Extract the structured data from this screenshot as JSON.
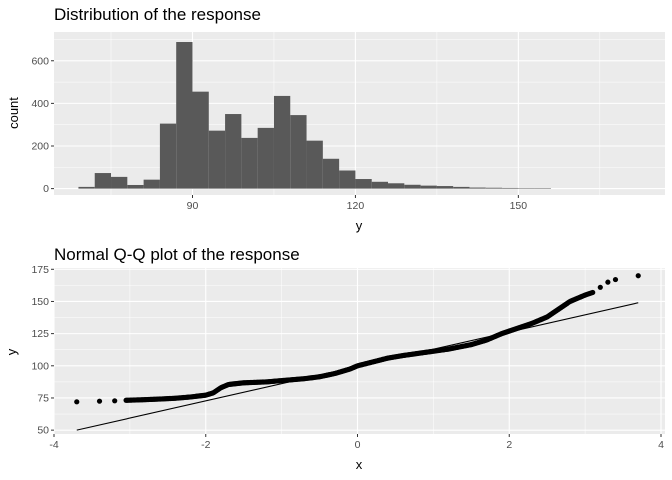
{
  "chart_data": [
    {
      "type": "histogram",
      "title": "Distribution of the response",
      "xlabel": "y",
      "ylabel": "count",
      "xlim": [
        64.5,
        177
      ],
      "ylim": [
        -30,
        735
      ],
      "xticks": [
        90,
        120,
        150
      ],
      "yticks": [
        0,
        200,
        400,
        600
      ],
      "bin_width": 3,
      "bins": [
        {
          "x0": 69,
          "x1": 72,
          "count": 8
        },
        {
          "x0": 72,
          "x1": 75,
          "count": 73
        },
        {
          "x0": 75,
          "x1": 78,
          "count": 55
        },
        {
          "x0": 78,
          "x1": 81,
          "count": 17
        },
        {
          "x0": 81,
          "x1": 84,
          "count": 42
        },
        {
          "x0": 84,
          "x1": 87,
          "count": 305
        },
        {
          "x0": 87,
          "x1": 90,
          "count": 688
        },
        {
          "x0": 90,
          "x1": 93,
          "count": 455
        },
        {
          "x0": 93,
          "x1": 96,
          "count": 272
        },
        {
          "x0": 96,
          "x1": 99,
          "count": 350
        },
        {
          "x0": 99,
          "x1": 102,
          "count": 238
        },
        {
          "x0": 102,
          "x1": 105,
          "count": 285
        },
        {
          "x0": 105,
          "x1": 108,
          "count": 435
        },
        {
          "x0": 108,
          "x1": 111,
          "count": 345
        },
        {
          "x0": 111,
          "x1": 114,
          "count": 225
        },
        {
          "x0": 114,
          "x1": 117,
          "count": 140
        },
        {
          "x0": 117,
          "x1": 120,
          "count": 85
        },
        {
          "x0": 120,
          "x1": 123,
          "count": 45
        },
        {
          "x0": 123,
          "x1": 126,
          "count": 32
        },
        {
          "x0": 126,
          "x1": 129,
          "count": 25
        },
        {
          "x0": 129,
          "x1": 132,
          "count": 18
        },
        {
          "x0": 132,
          "x1": 135,
          "count": 14
        },
        {
          "x0": 135,
          "x1": 138,
          "count": 12
        },
        {
          "x0": 138,
          "x1": 141,
          "count": 8
        },
        {
          "x0": 141,
          "x1": 144,
          "count": 5
        },
        {
          "x0": 144,
          "x1": 147,
          "count": 4
        },
        {
          "x0": 147,
          "x1": 150,
          "count": 3
        },
        {
          "x0": 150,
          "x1": 153,
          "count": 2
        },
        {
          "x0": 153,
          "x1": 156,
          "count": 1
        }
      ],
      "bar_color": "#595959",
      "panel_color": "#ebebeb"
    },
    {
      "type": "scatter",
      "title": "Normal Q-Q plot of the response",
      "xlabel": "x",
      "ylabel": "y",
      "xlim": [
        -4,
        4
      ],
      "ylim": [
        47,
        176
      ],
      "xticks": [
        -4,
        -2,
        0,
        2,
        4
      ],
      "yticks": [
        50,
        75,
        100,
        125,
        150,
        175
      ],
      "quantile_curve": [
        {
          "x": -3.7,
          "y": 72
        },
        {
          "x": -3.4,
          "y": 72.5
        },
        {
          "x": -3.2,
          "y": 73
        },
        {
          "x": -3.0,
          "y": 73.3
        },
        {
          "x": -2.8,
          "y": 73.7
        },
        {
          "x": -2.6,
          "y": 74.2
        },
        {
          "x": -2.4,
          "y": 74.8
        },
        {
          "x": -2.2,
          "y": 75.8
        },
        {
          "x": -2.0,
          "y": 77.2
        },
        {
          "x": -1.9,
          "y": 79
        },
        {
          "x": -1.8,
          "y": 83
        },
        {
          "x": -1.7,
          "y": 85.5
        },
        {
          "x": -1.5,
          "y": 86.8
        },
        {
          "x": -1.2,
          "y": 87.5
        },
        {
          "x": -1.0,
          "y": 88.5
        },
        {
          "x": -0.7,
          "y": 90
        },
        {
          "x": -0.5,
          "y": 91.5
        },
        {
          "x": -0.3,
          "y": 94
        },
        {
          "x": -0.1,
          "y": 97.5
        },
        {
          "x": 0.0,
          "y": 100
        },
        {
          "x": 0.2,
          "y": 103
        },
        {
          "x": 0.4,
          "y": 106
        },
        {
          "x": 0.6,
          "y": 108
        },
        {
          "x": 0.9,
          "y": 110.5
        },
        {
          "x": 1.2,
          "y": 113
        },
        {
          "x": 1.5,
          "y": 116.5
        },
        {
          "x": 1.7,
          "y": 120
        },
        {
          "x": 1.9,
          "y": 125
        },
        {
          "x": 2.1,
          "y": 129
        },
        {
          "x": 2.3,
          "y": 133
        },
        {
          "x": 2.5,
          "y": 138
        },
        {
          "x": 2.65,
          "y": 144
        },
        {
          "x": 2.8,
          "y": 150
        },
        {
          "x": 3.0,
          "y": 155
        },
        {
          "x": 3.15,
          "y": 158
        }
      ],
      "outliers": [
        {
          "x": -3.7,
          "y": 72
        },
        {
          "x": -3.4,
          "y": 72.5
        },
        {
          "x": -3.2,
          "y": 72.8
        },
        {
          "x": 3.2,
          "y": 161
        },
        {
          "x": 3.3,
          "y": 165
        },
        {
          "x": 3.4,
          "y": 167
        },
        {
          "x": 3.7,
          "y": 170
        }
      ],
      "reference_line": [
        {
          "x": -3.7,
          "y": 50
        },
        {
          "x": 3.7,
          "y": 149
        }
      ],
      "point_color": "#000000",
      "panel_color": "#ebebeb"
    }
  ]
}
